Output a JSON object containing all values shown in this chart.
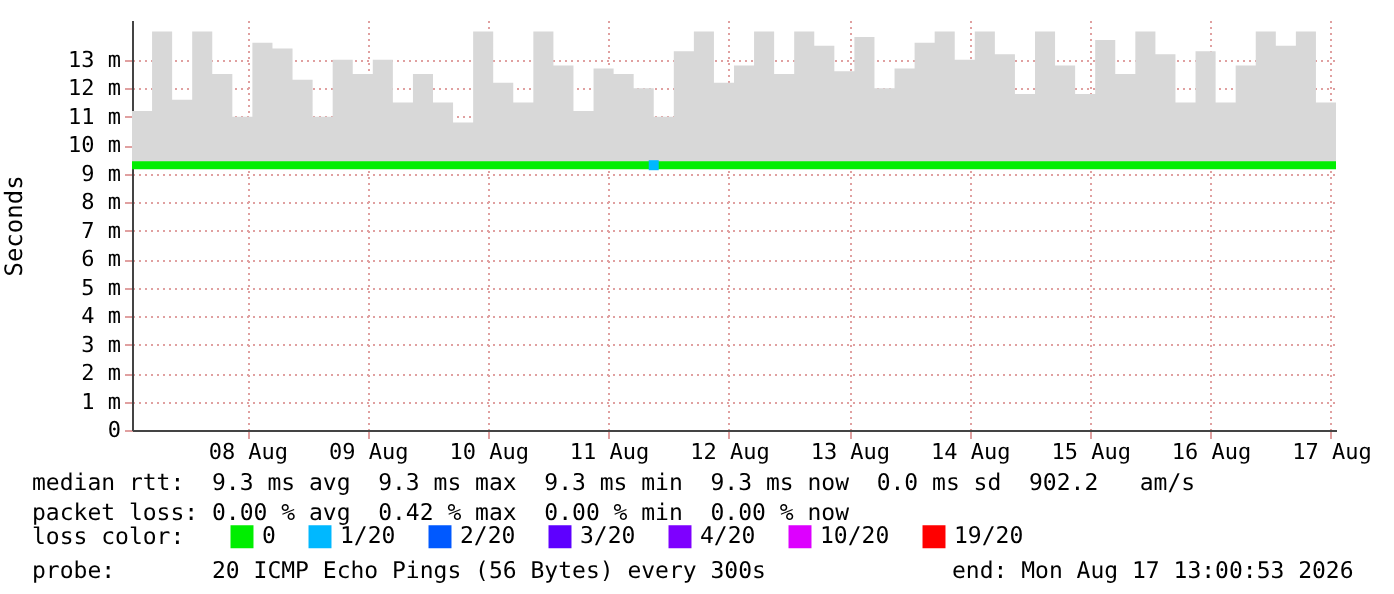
{
  "chart_data": {
    "type": "line",
    "ylabel": "Seconds",
    "legend_title": "loss color:",
    "legend": "bottom",
    "grid": true,
    "x": [
      "2026-08-07T13:00",
      "2026-08-07T17:00",
      "2026-08-07T21:00",
      "2026-08-08T01:00",
      "2026-08-08T05:00",
      "2026-08-08T09:00",
      "2026-08-08T13:00",
      "2026-08-08T17:00",
      "2026-08-08T21:00",
      "2026-08-09T01:00",
      "2026-08-09T05:00",
      "2026-08-09T09:00",
      "2026-08-09T13:00",
      "2026-08-09T17:00",
      "2026-08-09T21:00",
      "2026-08-10T01:00",
      "2026-08-10T05:00",
      "2026-08-10T09:00",
      "2026-08-10T13:00",
      "2026-08-10T17:00",
      "2026-08-10T21:00",
      "2026-08-11T01:00",
      "2026-08-11T05:00",
      "2026-08-11T09:00",
      "2026-08-11T13:00",
      "2026-08-11T17:00",
      "2026-08-11T21:00",
      "2026-08-12T01:00",
      "2026-08-12T05:00",
      "2026-08-12T09:00",
      "2026-08-12T13:00",
      "2026-08-12T17:00",
      "2026-08-12T21:00",
      "2026-08-13T01:00",
      "2026-08-13T05:00",
      "2026-08-13T09:00",
      "2026-08-13T13:00",
      "2026-08-13T17:00",
      "2026-08-13T21:00",
      "2026-08-14T01:00",
      "2026-08-14T05:00",
      "2026-08-14T09:00",
      "2026-08-14T13:00",
      "2026-08-14T17:00",
      "2026-08-14T21:00",
      "2026-08-15T01:00",
      "2026-08-15T05:00",
      "2026-08-15T09:00",
      "2026-08-15T13:00",
      "2026-08-15T17:00",
      "2026-08-15T21:00",
      "2026-08-16T01:00",
      "2026-08-16T05:00",
      "2026-08-16T09:00",
      "2026-08-16T13:00",
      "2026-08-16T17:00",
      "2026-08-16T21:00",
      "2026-08-17T01:00",
      "2026-08-17T05:00",
      "2026-08-17T09:00",
      "2026-08-17T13:00"
    ],
    "xlim": [
      "2026-08-07T13:00",
      "2026-08-17T13:00"
    ],
    "xticks": [
      {
        "value": "2026-08-08T12:00",
        "label": "08 Aug"
      },
      {
        "value": "2026-08-09T12:00",
        "label": "09 Aug"
      },
      {
        "value": "2026-08-10T12:00",
        "label": "10 Aug"
      },
      {
        "value": "2026-08-11T12:00",
        "label": "11 Aug"
      },
      {
        "value": "2026-08-12T12:00",
        "label": "12 Aug"
      },
      {
        "value": "2026-08-13T12:00",
        "label": "13 Aug"
      },
      {
        "value": "2026-08-14T12:00",
        "label": "14 Aug"
      },
      {
        "value": "2026-08-15T12:00",
        "label": "15 Aug"
      },
      {
        "value": "2026-08-16T12:00",
        "label": "16 Aug"
      },
      {
        "value": "2026-08-17T12:00",
        "label": "17 Aug"
      }
    ],
    "ylim": [
      0,
      14.4
    ],
    "yticks": [
      0,
      {
        "value": 1,
        "label": "1 m"
      },
      {
        "value": 2,
        "label": "2 m"
      },
      {
        "value": 3,
        "label": "3 m"
      },
      {
        "value": 4,
        "label": "4 m"
      },
      {
        "value": 5,
        "label": "5 m"
      },
      {
        "value": 6,
        "label": "6 m"
      },
      {
        "value": 7,
        "label": "7 m"
      },
      {
        "value": 8,
        "label": "8 m"
      },
      {
        "value": 9,
        "label": "9 m"
      },
      {
        "value": 10,
        "label": "10 m"
      },
      {
        "value": 11,
        "label": "11 m"
      },
      {
        "value": 12,
        "label": "12 m"
      },
      {
        "value": 13,
        "label": "13 m"
      }
    ],
    "series": [
      {
        "name": "0",
        "color": "#00ee00",
        "values": [
          9.3,
          9.3,
          9.3,
          9.3,
          9.3,
          9.3,
          9.3,
          9.3,
          9.3,
          9.3,
          9.3,
          9.3,
          9.3,
          9.3,
          9.3,
          9.3,
          9.3,
          9.3,
          9.3,
          9.3,
          9.3,
          9.3,
          9.3,
          9.3,
          9.3,
          9.3,
          9.3,
          9.3,
          9.3,
          9.3,
          9.3,
          9.3,
          9.3,
          9.3,
          9.3,
          9.3,
          9.3,
          9.3,
          9.3,
          9.3,
          9.3,
          9.3,
          9.3,
          9.3,
          9.3,
          9.3,
          9.3,
          9.3,
          9.3,
          9.3,
          9.3,
          9.3,
          9.3,
          9.3,
          9.3,
          9.3,
          9.3,
          9.3,
          9.3,
          9.3,
          9.3
        ],
        "lower": [
          9.2,
          9.2,
          9.2,
          9.2,
          9.2,
          9.2,
          9.2,
          9.2,
          9.2,
          9.2,
          9.2,
          9.2,
          9.2,
          9.2,
          9.2,
          9.2,
          9.2,
          9.2,
          9.2,
          9.2,
          9.2,
          9.2,
          9.2,
          9.2,
          9.2,
          9.2,
          9.2,
          9.2,
          9.2,
          9.2,
          9.2,
          9.2,
          9.2,
          9.2,
          9.2,
          9.2,
          9.2,
          9.2,
          9.2,
          9.2,
          9.2,
          9.2,
          9.2,
          9.2,
          9.2,
          9.2,
          9.2,
          9.2,
          9.2,
          9.2,
          9.2,
          9.2,
          9.2,
          9.2,
          9.2,
          9.2,
          9.2,
          9.2,
          9.2,
          9.2,
          9.2
        ],
        "upper": [
          11.2,
          14,
          11.6,
          14,
          12.5,
          11,
          13.6,
          13.4,
          12.3,
          11,
          13,
          12.5,
          13,
          11.5,
          12.5,
          11.5,
          10.8,
          14,
          12.2,
          11.5,
          14,
          12.8,
          11.2,
          12.7,
          12.5,
          12,
          11,
          13.3,
          14,
          12.2,
          12.8,
          14,
          12.5,
          14,
          13.5,
          12.6,
          13.8,
          12,
          12.7,
          13.6,
          14,
          13,
          14,
          13.2,
          11.8,
          14,
          12.8,
          11.8,
          13.7,
          12.5,
          14,
          13.2,
          11.5,
          13.3,
          11.5,
          12.8,
          14,
          13.5,
          14,
          11.5,
          10.5
        ]
      },
      {
        "name": "1/20",
        "color": "#00b8ff",
        "type": "scatter",
        "marker": "square",
        "values": [
          null,
          null,
          null,
          null,
          null,
          null,
          null,
          null,
          null,
          null,
          null,
          null,
          null,
          null,
          null,
          null,
          null,
          null,
          null,
          null,
          null,
          null,
          null,
          null,
          null,
          null,
          9.3,
          null,
          null,
          null,
          null,
          null,
          null,
          null,
          null,
          null,
          null,
          null,
          null,
          null,
          null,
          null,
          null,
          null,
          null,
          null,
          null,
          null,
          null,
          null,
          null,
          null,
          null,
          null,
          null,
          null,
          null,
          null,
          null,
          null,
          null
        ]
      },
      {
        "name": "2/20",
        "color": "#0059ff",
        "values": [
          null,
          null,
          null,
          null,
          null,
          null,
          null,
          null,
          null,
          null,
          null,
          null,
          null,
          null,
          null,
          null,
          null,
          null,
          null,
          null,
          null,
          null,
          null,
          null,
          null,
          null,
          null,
          null,
          null,
          null,
          null,
          null,
          null,
          null,
          null,
          null,
          null,
          null,
          null,
          null,
          null,
          null,
          null,
          null,
          null,
          null,
          null,
          null,
          null,
          null,
          null,
          null,
          null,
          null,
          null,
          null,
          null,
          null,
          null,
          null,
          null
        ]
      },
      {
        "name": "3/20",
        "color": "#5e00ff",
        "values": [
          null,
          null,
          null,
          null,
          null,
          null,
          null,
          null,
          null,
          null,
          null,
          null,
          null,
          null,
          null,
          null,
          null,
          null,
          null,
          null,
          null,
          null,
          null,
          null,
          null,
          null,
          null,
          null,
          null,
          null,
          null,
          null,
          null,
          null,
          null,
          null,
          null,
          null,
          null,
          null,
          null,
          null,
          null,
          null,
          null,
          null,
          null,
          null,
          null,
          null,
          null,
          null,
          null,
          null,
          null,
          null,
          null,
          null,
          null,
          null,
          null
        ]
      },
      {
        "name": "4/20",
        "color": "#7e00ff",
        "values": [
          null,
          null,
          null,
          null,
          null,
          null,
          null,
          null,
          null,
          null,
          null,
          null,
          null,
          null,
          null,
          null,
          null,
          null,
          null,
          null,
          null,
          null,
          null,
          null,
          null,
          null,
          null,
          null,
          null,
          null,
          null,
          null,
          null,
          null,
          null,
          null,
          null,
          null,
          null,
          null,
          null,
          null,
          null,
          null,
          null,
          null,
          null,
          null,
          null,
          null,
          null,
          null,
          null,
          null,
          null,
          null,
          null,
          null,
          null,
          null,
          null
        ]
      },
      {
        "name": "10/20",
        "color": "#dd00ff",
        "values": [
          null,
          null,
          null,
          null,
          null,
          null,
          null,
          null,
          null,
          null,
          null,
          null,
          null,
          null,
          null,
          null,
          null,
          null,
          null,
          null,
          null,
          null,
          null,
          null,
          null,
          null,
          null,
          null,
          null,
          null,
          null,
          null,
          null,
          null,
          null,
          null,
          null,
          null,
          null,
          null,
          null,
          null,
          null,
          null,
          null,
          null,
          null,
          null,
          null,
          null,
          null,
          null,
          null,
          null,
          null,
          null,
          null,
          null,
          null,
          null,
          null
        ]
      },
      {
        "name": "19/20",
        "color": "#ff0000",
        "values": [
          null,
          null,
          null,
          null,
          null,
          null,
          null,
          null,
          null,
          null,
          null,
          null,
          null,
          null,
          null,
          null,
          null,
          null,
          null,
          null,
          null,
          null,
          null,
          null,
          null,
          null,
          null,
          null,
          null,
          null,
          null,
          null,
          null,
          null,
          null,
          null,
          null,
          null,
          null,
          null,
          null,
          null,
          null,
          null,
          null,
          null,
          null,
          null,
          null,
          null,
          null,
          null,
          null,
          null,
          null,
          null,
          null,
          null,
          null,
          null,
          null
        ]
      }
    ],
    "annotations": [
      "median rtt:  9.3 ms avg  9.3 ms max  9.3 ms min  9.3 ms now  0.0 ms sd  902.2   am/s",
      "packet loss: 0.00 % avg  0.42 % max  0.00 % min  0.00 % now",
      "probe:       20 ICMP Echo Pings (56 Bytes) every 300s",
      "end: Mon Aug 17 13:00:53 2026"
    ]
  }
}
